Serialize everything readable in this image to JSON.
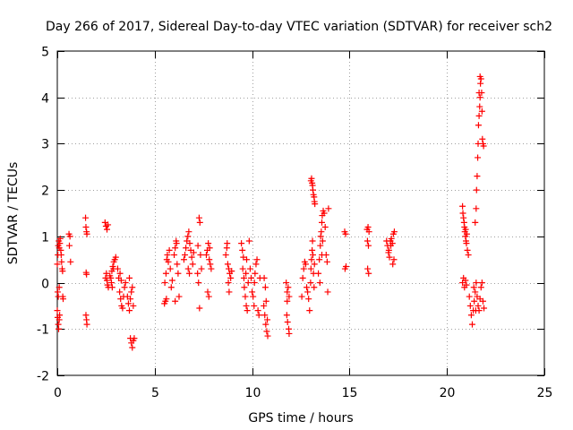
{
  "chart_data": {
    "type": "scatter",
    "title": "Day 266 of 2017, Sidereal Day-to-day VTEC variation (SDTVAR) for receiver sch2",
    "xlabel": "GPS time / hours",
    "ylabel": "SDTVAR / TECUs",
    "xlim": [
      0,
      25
    ],
    "ylim": [
      -2,
      5
    ],
    "xticks": [
      0,
      5,
      10,
      15,
      20,
      25
    ],
    "yticks": [
      -2,
      -1,
      0,
      1,
      2,
      3,
      4,
      5
    ],
    "grid": true,
    "marker": "+",
    "color": "#ff0000",
    "series": [
      {
        "name": "SDTVAR",
        "points": [
          [
            0.0,
            -0.6
          ],
          [
            0.02,
            -0.75
          ],
          [
            0.05,
            -0.9
          ],
          [
            0.07,
            -1.0
          ],
          [
            0.1,
            -0.8
          ],
          [
            0.12,
            -0.7
          ],
          [
            0.0,
            0.4
          ],
          [
            0.03,
            0.6
          ],
          [
            0.05,
            0.8
          ],
          [
            0.08,
            0.9
          ],
          [
            0.1,
            0.75
          ],
          [
            0.13,
            0.85
          ],
          [
            0.15,
            0.95
          ],
          [
            0.18,
            0.7
          ],
          [
            0.2,
            0.6
          ],
          [
            0.22,
            0.45
          ],
          [
            0.25,
            0.3
          ],
          [
            0.02,
            -0.2
          ],
          [
            0.05,
            -0.3
          ],
          [
            0.1,
            -0.1
          ],
          [
            0.28,
            -0.3
          ],
          [
            0.3,
            -0.35
          ],
          [
            0.27,
            0.25
          ],
          [
            0.6,
            1.05
          ],
          [
            0.65,
            1.0
          ],
          [
            0.62,
            0.8
          ],
          [
            0.68,
            0.45
          ],
          [
            1.45,
            1.4
          ],
          [
            1.47,
            1.2
          ],
          [
            1.5,
            1.1
          ],
          [
            1.52,
            1.05
          ],
          [
            1.48,
            0.22
          ],
          [
            1.5,
            0.18
          ],
          [
            1.47,
            -0.7
          ],
          [
            1.5,
            -0.8
          ],
          [
            1.52,
            -0.9
          ],
          [
            2.45,
            1.3
          ],
          [
            2.5,
            1.22
          ],
          [
            2.55,
            1.15
          ],
          [
            2.6,
            1.25
          ],
          [
            2.52,
            0.2
          ],
          [
            2.55,
            0.05
          ],
          [
            2.58,
            -0.05
          ],
          [
            2.62,
            -0.1
          ],
          [
            2.48,
            0.1
          ],
          [
            2.7,
            0.15
          ],
          [
            2.75,
            0.1
          ],
          [
            2.8,
            0.25
          ],
          [
            2.85,
            0.35
          ],
          [
            2.9,
            0.45
          ],
          [
            2.95,
            0.5
          ],
          [
            3.0,
            0.55
          ],
          [
            2.78,
            0.0
          ],
          [
            2.82,
            -0.1
          ],
          [
            2.88,
            0.3
          ],
          [
            3.1,
            0.3
          ],
          [
            3.15,
            0.1
          ],
          [
            3.2,
            -0.2
          ],
          [
            3.25,
            -0.35
          ],
          [
            3.3,
            -0.5
          ],
          [
            3.35,
            -0.55
          ],
          [
            3.28,
            0.05
          ],
          [
            3.22,
            0.2
          ],
          [
            3.4,
            -0.3
          ],
          [
            3.45,
            -0.1
          ],
          [
            3.5,
            0.0
          ],
          [
            3.6,
            -0.3
          ],
          [
            3.65,
            -0.45
          ],
          [
            3.7,
            -0.6
          ],
          [
            3.75,
            -0.35
          ],
          [
            3.8,
            -0.2
          ],
          [
            3.85,
            -0.1
          ],
          [
            3.7,
            0.1
          ],
          [
            3.9,
            -0.5
          ],
          [
            3.75,
            -1.2
          ],
          [
            3.8,
            -1.3
          ],
          [
            3.85,
            -1.4
          ],
          [
            3.9,
            -1.25
          ],
          [
            3.95,
            -1.2
          ],
          [
            5.5,
            -0.45
          ],
          [
            5.55,
            -0.4
          ],
          [
            5.6,
            -0.35
          ],
          [
            5.52,
            0.0
          ],
          [
            5.58,
            0.2
          ],
          [
            5.62,
            0.5
          ],
          [
            5.65,
            0.6
          ],
          [
            5.7,
            0.45
          ],
          [
            5.75,
            0.7
          ],
          [
            5.8,
            0.3
          ],
          [
            5.85,
            -0.1
          ],
          [
            5.9,
            0.05
          ],
          [
            6.0,
            0.6
          ],
          [
            6.05,
            0.75
          ],
          [
            6.1,
            0.9
          ],
          [
            6.12,
            0.85
          ],
          [
            6.15,
            0.4
          ],
          [
            6.2,
            0.2
          ],
          [
            6.25,
            -0.3
          ],
          [
            6.05,
            -0.4
          ],
          [
            6.5,
            0.5
          ],
          [
            6.55,
            0.6
          ],
          [
            6.6,
            0.75
          ],
          [
            6.65,
            0.9
          ],
          [
            6.7,
            1.0
          ],
          [
            6.75,
            1.1
          ],
          [
            6.8,
            0.85
          ],
          [
            6.85,
            0.7
          ],
          [
            6.9,
            0.55
          ],
          [
            6.95,
            0.4
          ],
          [
            7.0,
            0.65
          ],
          [
            6.72,
            0.3
          ],
          [
            6.78,
            0.2
          ],
          [
            7.2,
            0.2
          ],
          [
            7.25,
            0.0
          ],
          [
            7.3,
            -0.55
          ],
          [
            7.28,
            1.4
          ],
          [
            7.32,
            1.3
          ],
          [
            7.22,
            0.8
          ],
          [
            7.35,
            0.6
          ],
          [
            7.4,
            0.3
          ],
          [
            7.65,
            0.6
          ],
          [
            7.7,
            0.7
          ],
          [
            7.75,
            0.85
          ],
          [
            7.8,
            0.5
          ],
          [
            7.85,
            0.4
          ],
          [
            7.9,
            0.3
          ],
          [
            7.72,
            -0.2
          ],
          [
            7.78,
            -0.3
          ],
          [
            7.82,
            0.75
          ],
          [
            8.65,
            0.6
          ],
          [
            8.7,
            0.75
          ],
          [
            8.72,
            0.85
          ],
          [
            8.75,
            0.4
          ],
          [
            8.8,
            0.3
          ],
          [
            8.85,
            0.2
          ],
          [
            8.9,
            0.1
          ],
          [
            8.78,
            0.0
          ],
          [
            8.95,
            0.25
          ],
          [
            8.82,
            -0.2
          ],
          [
            9.45,
            0.85
          ],
          [
            9.5,
            0.7
          ],
          [
            9.55,
            0.55
          ],
          [
            9.52,
            0.3
          ],
          [
            9.58,
            0.1
          ],
          [
            9.6,
            -0.1
          ],
          [
            9.65,
            -0.3
          ],
          [
            9.7,
            -0.5
          ],
          [
            9.75,
            -0.6
          ],
          [
            9.68,
            0.2
          ],
          [
            9.8,
            0.0
          ],
          [
            9.85,
            0.9
          ],
          [
            9.72,
            0.5
          ],
          [
            9.9,
            0.3
          ],
          [
            9.95,
            0.1
          ],
          [
            10.0,
            -0.2
          ],
          [
            10.05,
            -0.3
          ],
          [
            10.1,
            -0.5
          ],
          [
            10.12,
            0.0
          ],
          [
            10.15,
            0.2
          ],
          [
            10.2,
            0.4
          ],
          [
            10.25,
            0.5
          ],
          [
            10.3,
            -0.6
          ],
          [
            10.35,
            -0.7
          ],
          [
            10.4,
            0.1
          ],
          [
            10.6,
            -0.5
          ],
          [
            10.65,
            -0.7
          ],
          [
            10.7,
            -0.9
          ],
          [
            10.75,
            -1.05
          ],
          [
            10.8,
            -1.15
          ],
          [
            10.72,
            -0.4
          ],
          [
            10.68,
            -0.1
          ],
          [
            10.62,
            0.1
          ],
          [
            10.78,
            -0.8
          ],
          [
            11.75,
            0.0
          ],
          [
            11.8,
            -0.2
          ],
          [
            11.85,
            -0.1
          ],
          [
            11.78,
            -0.7
          ],
          [
            11.82,
            -0.85
          ],
          [
            11.88,
            -1.0
          ],
          [
            11.9,
            -1.1
          ],
          [
            11.8,
            -0.4
          ],
          [
            11.9,
            -0.3
          ],
          [
            12.55,
            -0.3
          ],
          [
            12.6,
            0.1
          ],
          [
            12.65,
            0.3
          ],
          [
            12.7,
            0.45
          ],
          [
            12.75,
            0.4
          ],
          [
            12.8,
            -0.1
          ],
          [
            12.85,
            -0.2
          ],
          [
            12.9,
            -0.35
          ],
          [
            12.95,
            -0.6
          ],
          [
            13.0,
            0.0
          ],
          [
            13.02,
            0.3
          ],
          [
            13.05,
            0.5
          ],
          [
            13.08,
            0.7
          ],
          [
            13.1,
            0.9
          ],
          [
            13.12,
            0.6
          ],
          [
            13.15,
            0.2
          ],
          [
            13.18,
            -0.1
          ],
          [
            13.2,
            0.4
          ],
          [
            13.02,
            2.2
          ],
          [
            13.05,
            2.25
          ],
          [
            13.08,
            2.15
          ],
          [
            13.1,
            2.1
          ],
          [
            13.12,
            2.0
          ],
          [
            13.15,
            1.9
          ],
          [
            13.18,
            1.85
          ],
          [
            13.2,
            1.75
          ],
          [
            13.22,
            1.7
          ],
          [
            13.4,
            0.2
          ],
          [
            13.45,
            0.5
          ],
          [
            13.5,
            0.8
          ],
          [
            13.52,
            1.0
          ],
          [
            13.55,
            1.1
          ],
          [
            13.58,
            1.3
          ],
          [
            13.6,
            1.45
          ],
          [
            13.65,
            1.55
          ],
          [
            13.7,
            1.5
          ],
          [
            13.62,
            0.9
          ],
          [
            13.58,
            0.6
          ],
          [
            13.48,
            0.0
          ],
          [
            13.75,
            1.2
          ],
          [
            13.8,
            0.6
          ],
          [
            13.85,
            0.45
          ],
          [
            13.88,
            -0.2
          ],
          [
            13.92,
            1.6
          ],
          [
            14.75,
            1.1
          ],
          [
            14.8,
            1.05
          ],
          [
            14.77,
            0.3
          ],
          [
            14.82,
            0.35
          ],
          [
            15.9,
            1.15
          ],
          [
            15.95,
            1.2
          ],
          [
            16.0,
            1.1
          ],
          [
            15.92,
            0.9
          ],
          [
            15.97,
            0.8
          ],
          [
            15.93,
            0.3
          ],
          [
            15.98,
            0.2
          ],
          [
            16.9,
            0.9
          ],
          [
            16.95,
            0.8
          ],
          [
            17.0,
            0.65
          ],
          [
            17.05,
            0.55
          ],
          [
            17.1,
            0.9
          ],
          [
            17.15,
            0.95
          ],
          [
            17.2,
            0.85
          ],
          [
            17.25,
            1.05
          ],
          [
            17.3,
            1.1
          ],
          [
            17.22,
            0.4
          ],
          [
            17.28,
            0.5
          ],
          [
            17.12,
            0.8
          ],
          [
            17.02,
            0.7
          ],
          [
            20.8,
            1.65
          ],
          [
            20.82,
            1.5
          ],
          [
            20.85,
            1.4
          ],
          [
            20.88,
            1.3
          ],
          [
            20.9,
            1.2
          ],
          [
            20.92,
            1.1
          ],
          [
            20.95,
            1.0
          ],
          [
            20.98,
            0.9
          ],
          [
            21.0,
            0.85
          ],
          [
            21.05,
            0.7
          ],
          [
            21.1,
            0.6
          ],
          [
            21.02,
            1.05
          ],
          [
            20.96,
            1.15
          ],
          [
            20.8,
            0.0
          ],
          [
            20.85,
            0.1
          ],
          [
            20.9,
            -0.1
          ],
          [
            20.95,
            0.05
          ],
          [
            21.0,
            -0.05
          ],
          [
            21.15,
            -0.3
          ],
          [
            21.2,
            -0.5
          ],
          [
            21.25,
            -0.7
          ],
          [
            21.3,
            -0.9
          ],
          [
            21.35,
            -0.6
          ],
          [
            21.4,
            -0.4
          ],
          [
            21.45,
            -0.2
          ],
          [
            21.5,
            0.0
          ],
          [
            21.55,
            -0.3
          ],
          [
            21.6,
            -0.5
          ],
          [
            21.65,
            -0.6
          ],
          [
            21.7,
            -0.35
          ],
          [
            21.75,
            -0.1
          ],
          [
            21.8,
            0.0
          ],
          [
            21.85,
            -0.4
          ],
          [
            21.9,
            -0.55
          ],
          [
            21.38,
            -0.1
          ],
          [
            21.48,
            -0.6
          ],
          [
            21.45,
            1.3
          ],
          [
            21.5,
            1.6
          ],
          [
            21.52,
            2.0
          ],
          [
            21.55,
            2.3
          ],
          [
            21.58,
            2.7
          ],
          [
            21.6,
            3.0
          ],
          [
            21.62,
            3.4
          ],
          [
            21.65,
            3.6
          ],
          [
            21.68,
            3.8
          ],
          [
            21.7,
            4.0
          ],
          [
            21.72,
            4.3
          ],
          [
            21.75,
            4.4
          ],
          [
            21.78,
            4.1
          ],
          [
            21.8,
            3.7
          ],
          [
            21.82,
            3.1
          ],
          [
            21.85,
            3.0
          ],
          [
            21.88,
            2.95
          ],
          [
            21.65,
            4.1
          ],
          [
            21.7,
            4.45
          ]
        ]
      }
    ]
  }
}
